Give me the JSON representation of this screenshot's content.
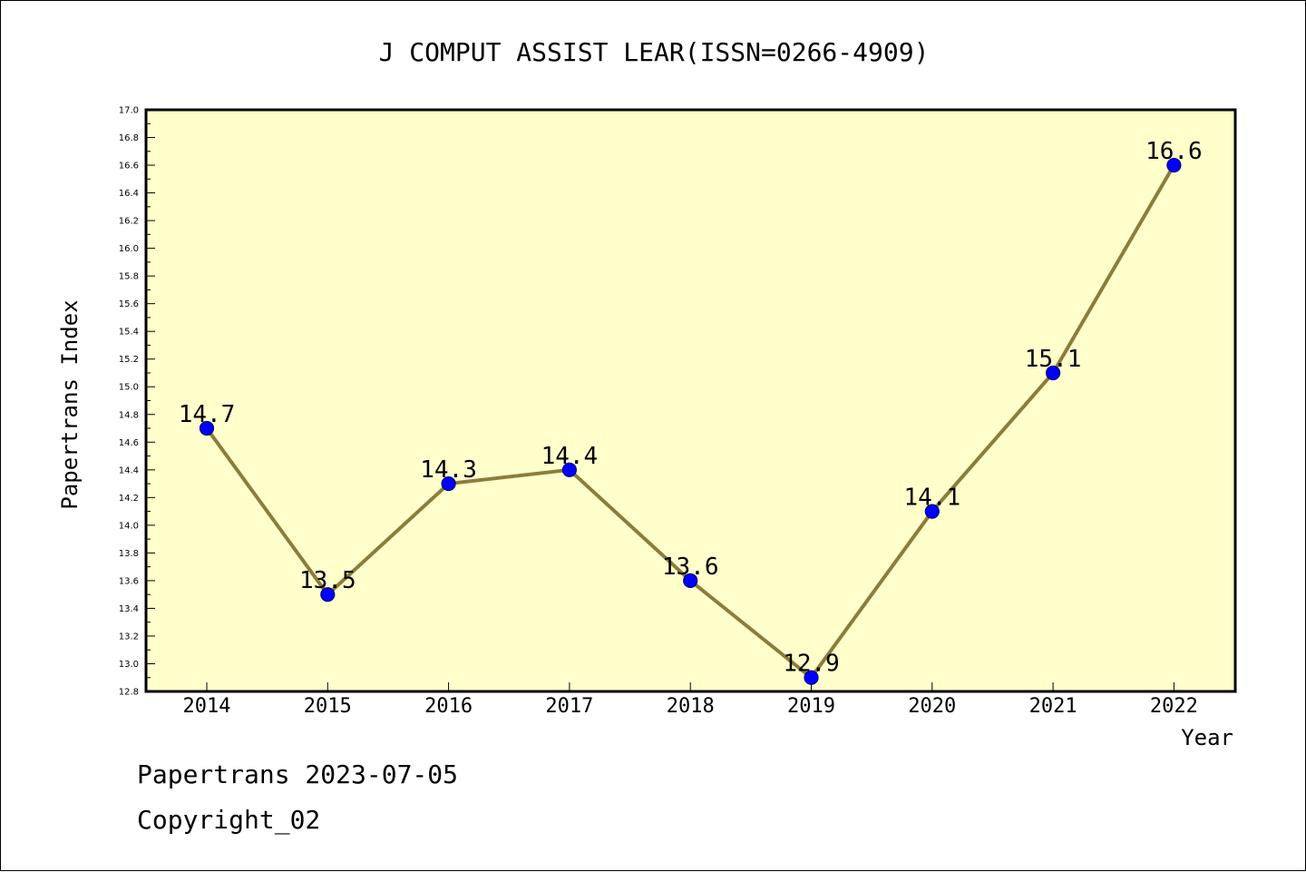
{
  "chart_data": {
    "type": "line",
    "title": "J COMPUT ASSIST LEAR(ISSN=0266-4909)",
    "xlabel": "Year",
    "ylabel": "Papertrans Index",
    "categories": [
      "2014",
      "2015",
      "2016",
      "2017",
      "2018",
      "2019",
      "2020",
      "2021",
      "2022"
    ],
    "values": [
      14.7,
      13.5,
      14.3,
      14.4,
      13.6,
      12.9,
      14.1,
      15.1,
      16.6
    ],
    "data_labels": [
      "14.7",
      "13.5",
      "14.3",
      "14.4",
      "13.6",
      "12.9",
      "14.1",
      "15.1",
      "16.6"
    ],
    "ylim": [
      12.8,
      17.0
    ],
    "yticks": [
      "12.8",
      "13.0",
      "13.2",
      "13.4",
      "13.6",
      "13.8",
      "14.0",
      "14.2",
      "14.4",
      "14.6",
      "14.8",
      "15.0",
      "15.2",
      "15.4",
      "15.6",
      "15.8",
      "16.0",
      "16.2",
      "16.4",
      "16.6",
      "16.8",
      "17.0"
    ],
    "grid": false,
    "colors": {
      "plot_bg": "#ffffcc",
      "line": "#8b7d3a",
      "marker": "#0000ff",
      "marker_edge": "#000080"
    }
  },
  "footer": {
    "date_line": "Papertrans 2023-07-05",
    "copyright": "Copyright_02"
  }
}
